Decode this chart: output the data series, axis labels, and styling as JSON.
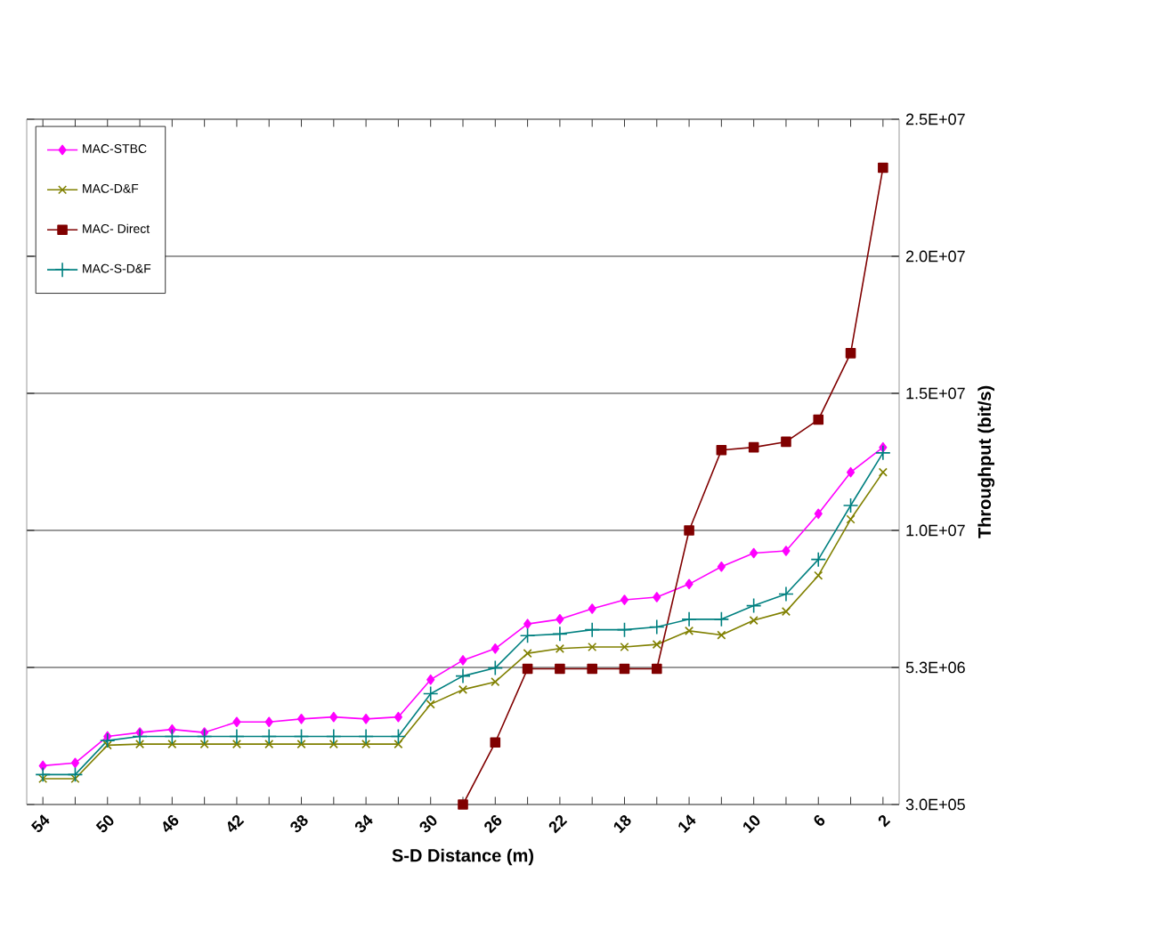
{
  "chart_data": {
    "type": "line",
    "xlabel": "S-D Distance (m)",
    "ylabel": "Throughput (bit/s)",
    "categories": [
      "54",
      null,
      "50",
      null,
      "46",
      null,
      "42",
      null,
      "38",
      null,
      "34",
      null,
      "30",
      null,
      "26",
      null,
      "22",
      null,
      "18",
      null,
      "14",
      null,
      "10",
      null,
      "6",
      null,
      "2"
    ],
    "series": [
      {
        "name": "MAC-STBC",
        "color": "#ff00ff",
        "marker": "diamond",
        "values": [
          1700000.0,
          1800000.0,
          2760000.0,
          2900000.0,
          3010000.0,
          2900000.0,
          3280000.0,
          3280000.0,
          3390000.0,
          3460000.0,
          3390000.0,
          3460000.0,
          4810000.0,
          5510000.0,
          5930000.0,
          6820000.0,
          6990000.0,
          7370000.0,
          7690000.0,
          7790000.0,
          8260000.0,
          8890000.0,
          9380000.0,
          9460000.0,
          10800000.0,
          12300000.0,
          13200000.0
        ]
      },
      {
        "name": "MAC-D&F",
        "color": "#808000",
        "marker": "cross",
        "values": [
          1230000.0,
          1230000.0,
          2440000.0,
          2480000.0,
          2480000.0,
          2480000.0,
          2480000.0,
          2480000.0,
          2480000.0,
          2480000.0,
          2480000.0,
          2480000.0,
          3920000.0,
          4450000.0,
          4730000.0,
          5760000.0,
          5930000.0,
          5990000.0,
          5990000.0,
          6080000.0,
          6570000.0,
          6420000.0,
          6950000.0,
          7270000.0,
          8570000.0,
          10600000.0,
          12300000.0
        ]
      },
      {
        "name": "MAC- Direct",
        "color": "#800000",
        "marker": "square",
        "values": [
          null,
          null,
          null,
          null,
          null,
          null,
          null,
          null,
          null,
          null,
          null,
          null,
          null,
          300000.0,
          2540000.0,
          5200000.0,
          5200000.0,
          5200000.0,
          5200000.0,
          5200000.0,
          10200000.0,
          13100000.0,
          13200000.0,
          13400000.0,
          14200000.0,
          16600000.0,
          23300000.0
        ]
      },
      {
        "name": "MAC-S-D&F",
        "color": "#008080",
        "marker": "plus",
        "values": [
          1380000.0,
          1380000.0,
          2610000.0,
          2760000.0,
          2760000.0,
          2760000.0,
          2760000.0,
          2760000.0,
          2760000.0,
          2760000.0,
          2760000.0,
          2760000.0,
          4300000.0,
          4940000.0,
          5230000.0,
          6400000.0,
          6460000.0,
          6610000.0,
          6610000.0,
          6710000.0,
          6990000.0,
          6990000.0,
          7480000.0,
          7900000.0,
          9150000.0,
          11100000.0,
          13000000.0
        ]
      }
    ],
    "ylim": [
      300000.0,
      25050000.0
    ],
    "yticks": [
      {
        "value": 300000.0,
        "label": "3.0E+05"
      },
      {
        "value": 5250000.0,
        "label": "5.3E+06"
      },
      {
        "value": 10200000.0,
        "label": "1.0E+07"
      },
      {
        "value": 15150000.0,
        "label": "1.5E+07"
      },
      {
        "value": 20100000.0,
        "label": "2.0E+07"
      },
      {
        "value": 25050000.0,
        "label": "2.5E+07"
      }
    ],
    "grid": "y",
    "legend": "top left",
    "line_style": "solid"
  }
}
